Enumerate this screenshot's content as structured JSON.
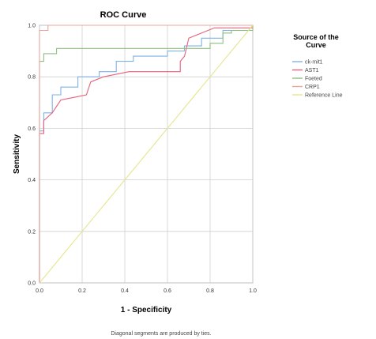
{
  "chart_data": {
    "type": "line",
    "title": "ROC Curve",
    "xlabel": "1 - Specificity",
    "ylabel": "Sensitivity",
    "xlim": [
      0,
      1
    ],
    "ylim": [
      0,
      1
    ],
    "xticks": [
      "0.0",
      "0.2",
      "0.4",
      "0.6",
      "0.8",
      "1.0"
    ],
    "yticks": [
      "0.0",
      "0.2",
      "0.4",
      "0.6",
      "0.8",
      "1.0"
    ],
    "grid": true,
    "legend_title": "Source of the Curve",
    "legend_position": "right",
    "footnote": "Diagonal segments are produced by ties.",
    "series": [
      {
        "name": "ck-mit1",
        "color": "#7fb2e5",
        "points": [
          [
            0,
            0
          ],
          [
            0,
            0.59
          ],
          [
            0.02,
            0.59
          ],
          [
            0.02,
            0.66
          ],
          [
            0.06,
            0.66
          ],
          [
            0.06,
            0.73
          ],
          [
            0.1,
            0.73
          ],
          [
            0.1,
            0.76
          ],
          [
            0.18,
            0.76
          ],
          [
            0.18,
            0.8
          ],
          [
            0.28,
            0.8
          ],
          [
            0.28,
            0.82
          ],
          [
            0.36,
            0.82
          ],
          [
            0.36,
            0.86
          ],
          [
            0.44,
            0.86
          ],
          [
            0.44,
            0.88
          ],
          [
            0.6,
            0.88
          ],
          [
            0.6,
            0.9
          ],
          [
            0.68,
            0.9
          ],
          [
            0.68,
            0.92
          ],
          [
            0.76,
            0.92
          ],
          [
            0.76,
            0.95
          ],
          [
            0.86,
            0.95
          ],
          [
            0.86,
            0.98
          ],
          [
            0.98,
            0.98
          ],
          [
            1,
            1
          ]
        ]
      },
      {
        "name": "AST1",
        "color": "#e8607a",
        "points": [
          [
            0,
            0
          ],
          [
            0,
            0.58
          ],
          [
            0.02,
            0.58
          ],
          [
            0.02,
            0.63
          ],
          [
            0.06,
            0.66
          ],
          [
            0.1,
            0.71
          ],
          [
            0.16,
            0.72
          ],
          [
            0.22,
            0.73
          ],
          [
            0.24,
            0.78
          ],
          [
            0.3,
            0.8
          ],
          [
            0.36,
            0.81
          ],
          [
            0.42,
            0.82
          ],
          [
            0.5,
            0.82
          ],
          [
            0.66,
            0.82
          ],
          [
            0.66,
            0.86
          ],
          [
            0.68,
            0.88
          ],
          [
            0.7,
            0.95
          ],
          [
            0.76,
            0.97
          ],
          [
            0.82,
            0.99
          ],
          [
            1,
            0.99
          ],
          [
            1,
            1
          ]
        ]
      },
      {
        "name": "Foeted",
        "color": "#8fbf7f",
        "points": [
          [
            0,
            0
          ],
          [
            0,
            0.86
          ],
          [
            0.02,
            0.86
          ],
          [
            0.02,
            0.89
          ],
          [
            0.08,
            0.89
          ],
          [
            0.08,
            0.91
          ],
          [
            0.8,
            0.91
          ],
          [
            0.8,
            0.93
          ],
          [
            0.86,
            0.93
          ],
          [
            0.86,
            0.97
          ],
          [
            0.9,
            0.97
          ],
          [
            0.9,
            0.98
          ],
          [
            1,
            0.98
          ],
          [
            1,
            1
          ]
        ]
      },
      {
        "name": "CRP1",
        "color": "#e8a5a0",
        "points": [
          [
            0,
            0
          ],
          [
            0,
            0.98
          ],
          [
            0.04,
            0.98
          ],
          [
            0.04,
            1
          ],
          [
            1,
            1
          ]
        ]
      },
      {
        "name": "Reference Line",
        "color": "#e6e68c",
        "points": [
          [
            0,
            0
          ],
          [
            1,
            1
          ]
        ]
      }
    ]
  }
}
